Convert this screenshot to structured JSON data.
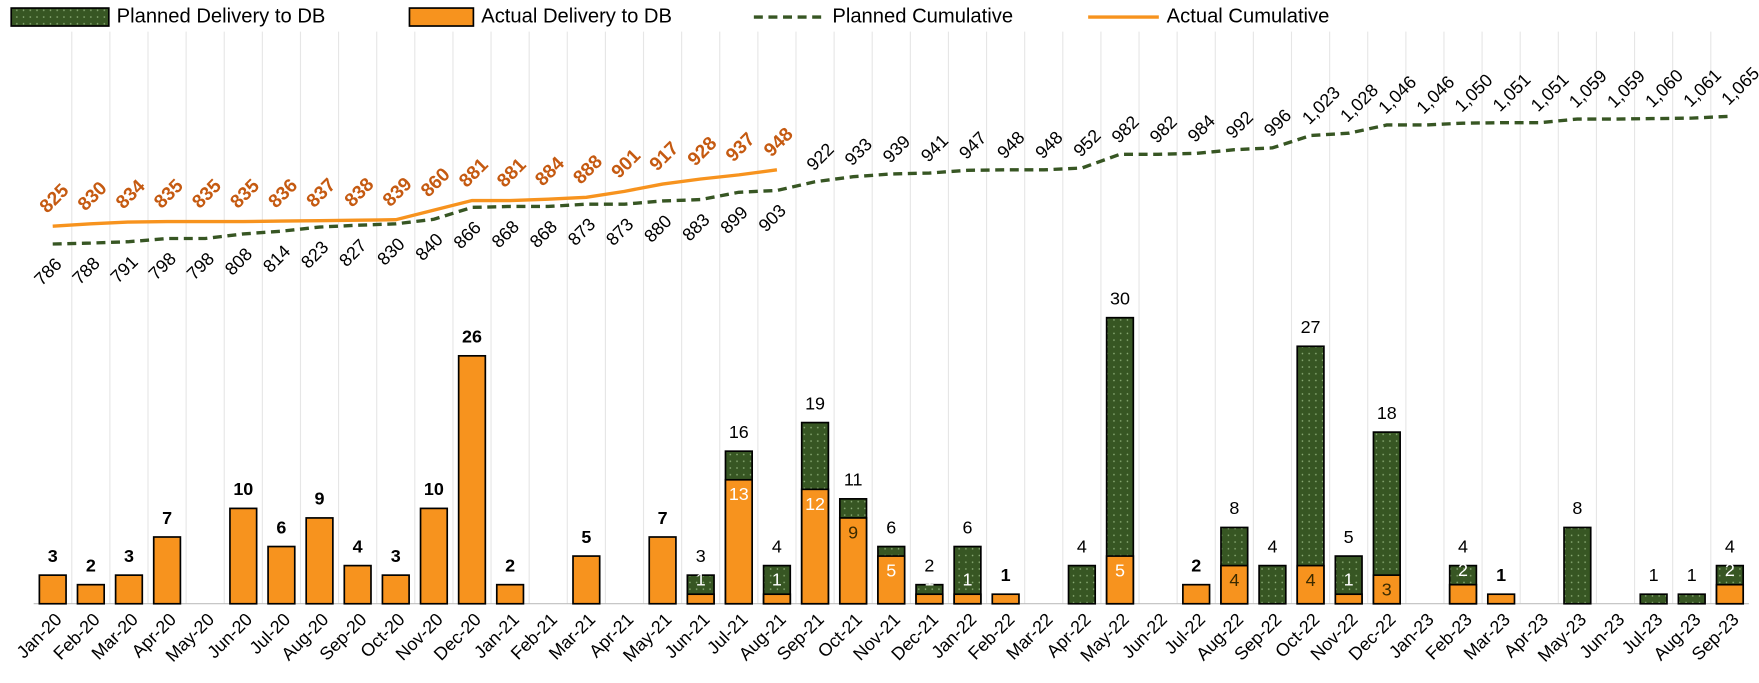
{
  "chart_data": {
    "type": "bar",
    "categories": [
      "Jan-20",
      "Feb-20",
      "Mar-20",
      "Apr-20",
      "May-20",
      "Jun-20",
      "Jul-20",
      "Aug-20",
      "Sep-20",
      "Oct-20",
      "Nov-20",
      "Dec-20",
      "Jan-21",
      "Feb-21",
      "Mar-21",
      "Apr-21",
      "May-21",
      "Jun-21",
      "Jul-21",
      "Aug-21",
      "Sep-21",
      "Oct-21",
      "Nov-21",
      "Dec-21",
      "Jan-22",
      "Feb-22",
      "Mar-22",
      "Apr-22",
      "May-22",
      "Jun-22",
      "Jul-22",
      "Aug-22",
      "Sep-22",
      "Oct-22",
      "Nov-22",
      "Dec-22",
      "Jan-23",
      "Feb-23",
      "Mar-23",
      "Apr-23",
      "May-23",
      "Jun-23",
      "Jul-23",
      "Aug-23",
      "Sep-23"
    ],
    "ylim": [
      0,
      60
    ],
    "y2lim": [
      0,
      1250
    ],
    "grid": true,
    "legend": "top",
    "series": [
      {
        "name": "Planned Delivery to DB",
        "type": "bar",
        "color": "#375623",
        "values": [
          null,
          null,
          null,
          null,
          null,
          null,
          null,
          null,
          null,
          null,
          null,
          null,
          null,
          null,
          null,
          null,
          null,
          3,
          16,
          4,
          19,
          11,
          6,
          2,
          6,
          null,
          null,
          4,
          30,
          null,
          null,
          8,
          4,
          27,
          5,
          18,
          null,
          4,
          null,
          null,
          8,
          null,
          1,
          1,
          4
        ]
      },
      {
        "name": "Actual Delivery to DB",
        "type": "bar",
        "color": "#f7931e",
        "values": [
          3,
          2,
          3,
          7,
          null,
          10,
          6,
          9,
          4,
          3,
          10,
          26,
          2,
          null,
          5,
          null,
          7,
          1,
          13,
          1,
          12,
          9,
          5,
          1,
          1,
          1,
          null,
          null,
          5,
          null,
          2,
          4,
          null,
          4,
          1,
          3,
          null,
          2,
          1,
          null,
          null,
          null,
          null,
          null,
          2
        ]
      },
      {
        "name": "Planned Cumulative",
        "type": "line",
        "axis": "y2",
        "color": "#375623",
        "dashed": true,
        "values": [
          786,
          788,
          791,
          798,
          798,
          808,
          814,
          823,
          827,
          830,
          840,
          866,
          868,
          868,
          873,
          873,
          880,
          883,
          899,
          903,
          922,
          933,
          939,
          941,
          947,
          948,
          948,
          952,
          982,
          982,
          984,
          992,
          996,
          1023,
          1028,
          1046,
          1046,
          1050,
          1051,
          1051,
          1059,
          1059,
          1060,
          1061,
          1065
        ],
        "value_labels": [
          "786",
          "788",
          "791",
          "798",
          "798",
          "808",
          "814",
          "823",
          "827",
          "830",
          "840",
          "866",
          "868",
          "868",
          "873",
          "873",
          "880",
          "883",
          "899",
          "903",
          "922",
          "933",
          "939",
          "941",
          "947",
          "948",
          "948",
          "952",
          "982",
          "982",
          "984",
          "992",
          "996",
          "1,023",
          "1,028",
          "1,046",
          "1,046",
          "1,050",
          "1,051",
          "1,051",
          "1,059",
          "1,059",
          "1,060",
          "1,061",
          "1,065"
        ]
      },
      {
        "name": "Actual Cumulative",
        "type": "line",
        "axis": "y2",
        "color": "#f7931e",
        "values": [
          825,
          830,
          834,
          835,
          835,
          835,
          836,
          837,
          838,
          839,
          860,
          881,
          881,
          884,
          888,
          901,
          917,
          928,
          937,
          948,
          null,
          null,
          null,
          null,
          null,
          null,
          null,
          null,
          null,
          null,
          null,
          null,
          null,
          null,
          null,
          null,
          null,
          null,
          null,
          null,
          null,
          null,
          null,
          null,
          null
        ]
      }
    ]
  }
}
